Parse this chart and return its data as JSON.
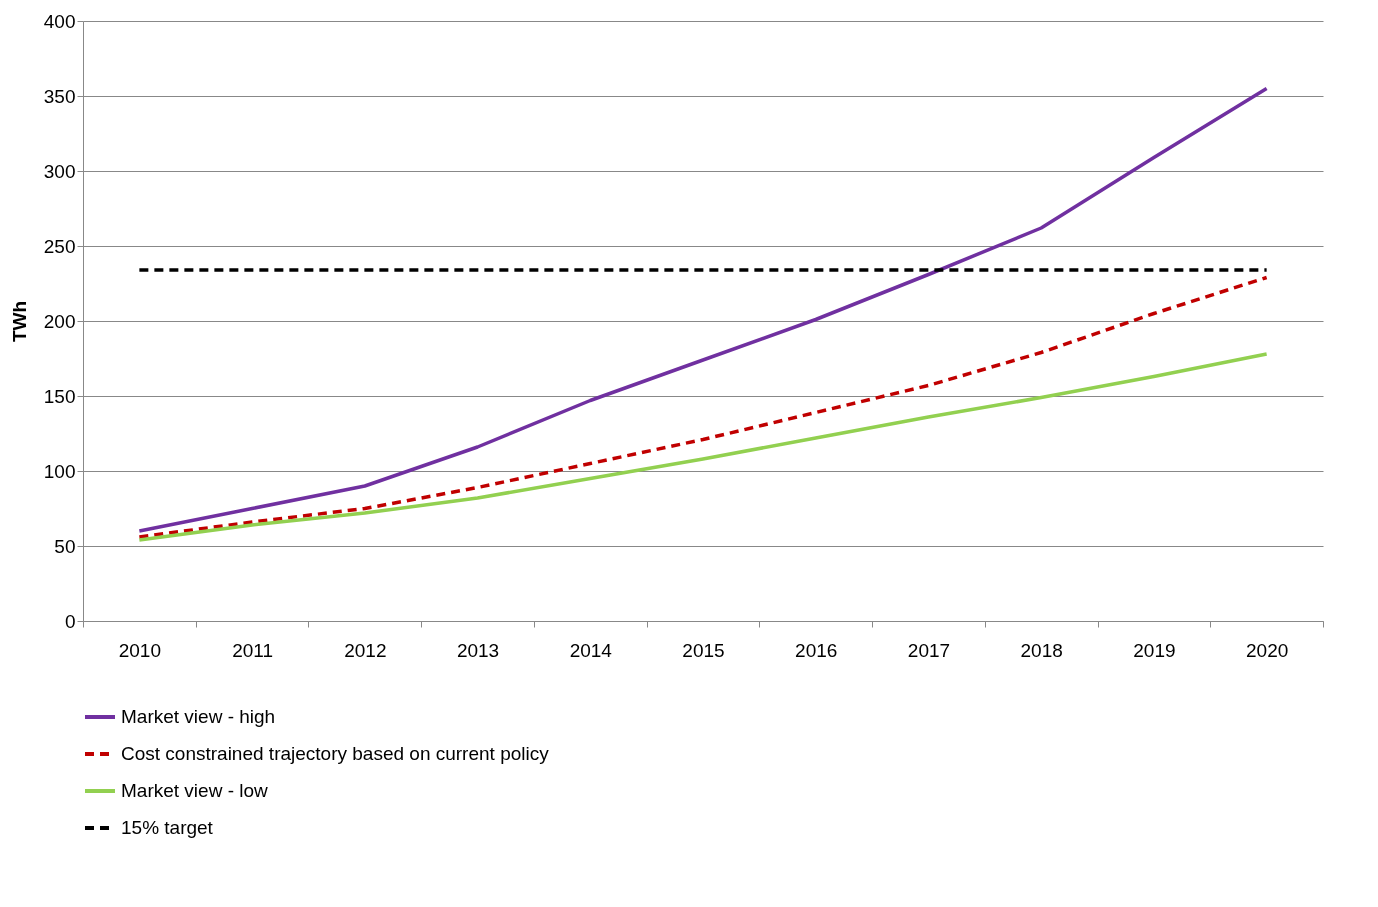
{
  "chart_data": {
    "type": "line",
    "ylabel": "TWh",
    "categories": [
      "2010",
      "2011",
      "2012",
      "2013",
      "2014",
      "2015",
      "2016",
      "2017",
      "2018",
      "2019",
      "2020"
    ],
    "ylim": [
      0,
      400
    ],
    "yticks": [
      0,
      50,
      100,
      150,
      200,
      250,
      300,
      350,
      400
    ],
    "grid": "y",
    "legend": "bottom",
    "series": [
      {
        "name": "Market view - high",
        "color": "#7030a0",
        "line_style": "solid",
        "values": [
          60,
          75,
          90,
          116,
          147,
          174,
          201,
          231,
          262,
          309,
          355
        ]
      },
      {
        "name": "Cost constrained trajectory based on current policy",
        "color": "#c00000",
        "line_style": "dashed",
        "values": [
          56,
          66,
          75,
          89,
          105,
          121,
          139,
          157,
          179,
          205,
          229
        ]
      },
      {
        "name": "Market view - low",
        "color": "#92d050",
        "line_style": "solid",
        "values": [
          54,
          64,
          72,
          82,
          95,
          108,
          122,
          136,
          149,
          163,
          178
        ]
      },
      {
        "name": "15% target",
        "color": "#000000",
        "line_style": "dashed",
        "values": [
          234,
          234,
          234,
          234,
          234,
          234,
          234,
          234,
          234,
          234,
          234
        ]
      }
    ]
  }
}
